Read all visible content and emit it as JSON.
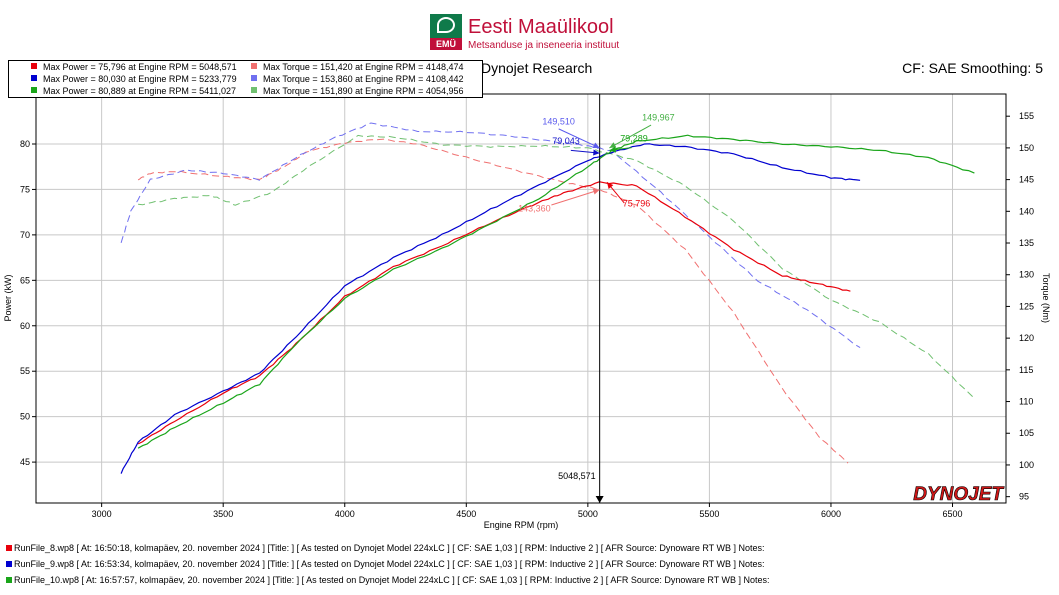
{
  "header": {
    "logo_title": "Eesti Maaülikool",
    "logo_abbr": "EMÜ",
    "logo_subtitle": "Metsanduse ja inseneeria instituut",
    "chart_title": "Dynojet Research",
    "cf_text": "CF: SAE Smoothing: 5"
  },
  "legend": {
    "power": [
      {
        "text": "Max Power = 75,796 at Engine RPM = 5048,571",
        "color": "#e8000b"
      },
      {
        "text": "Max Power = 80,030 at Engine RPM = 5233,779",
        "color": "#0000d0"
      },
      {
        "text": "Max Power = 80,889 at Engine RPM = 5411,027",
        "color": "#1aa51a"
      }
    ],
    "torque": [
      {
        "text": "Max Torque = 151,420 at Engine RPM = 4148,474",
        "color": "#f07070"
      },
      {
        "text": "Max Torque = 153,860 at Engine RPM = 4108,442",
        "color": "#7070f0"
      },
      {
        "text": "Max Torque = 151,890 at Engine RPM = 4054,956",
        "color": "#70c070"
      }
    ]
  },
  "cursor_label": "5048,571",
  "watermark": "DYNOJET",
  "runs": [
    {
      "text": "RunFile_8.wp8 [ At: 16:50:18, kolmapäev, 20. november 2024 ] [Title: ] [ As tested on Dynojet Model 224xLC ] [ CF: SAE 1,03 ] [ RPM: Inductive 2 ] [ AFR Source: Dynoware RT WB ] Notes:",
      "color": "#e8000b"
    },
    {
      "text": "RunFile_9.wp8 [ At: 16:53:34, kolmapäev, 20. november 2024 ] [Title: ] [ As tested on Dynojet Model 224xLC ] [ CF: SAE 1,03 ] [ RPM: Inductive 2 ] [ AFR Source: Dynoware RT WB ] Notes:",
      "color": "#0000d0"
    },
    {
      "text": "RunFile_10.wp8 [ At: 16:57:57, kolmapäev, 20. november 2024 ] [Title: ] [ As tested on Dynojet Model 224xLC ] [ CF: SAE 1,03 ] [ RPM: Inductive 2 ] [ AFR Source: Dynoware RT WB ] Notes:",
      "color": "#1aa51a"
    }
  ],
  "chart_data": {
    "type": "line",
    "xlabel": "Engine RPM (rpm)",
    "ylabel": "Power (kW)",
    "y2label": "Torque (Nm)",
    "xlim": [
      2730,
      6720
    ],
    "ylim": [
      40.5,
      85.5
    ],
    "y2lim": [
      94.0,
      158.5
    ],
    "xticks": [
      3000,
      3500,
      4000,
      4500,
      5000,
      5500,
      6000,
      6500
    ],
    "yticks": [
      45,
      50,
      55,
      60,
      65,
      70,
      75,
      80
    ],
    "y2ticks": [
      95,
      100,
      105,
      110,
      115,
      120,
      125,
      130,
      135,
      140,
      145,
      150,
      155
    ],
    "grid": true,
    "cursor_rpm": 5048.571,
    "power_series": [
      {
        "name": "RunFile_8 Power",
        "color": "#e8000b",
        "x": [
          3150,
          3300,
          3500,
          3650,
          3800,
          4000,
          4200,
          4400,
          4600,
          4800,
          4900,
          5048,
          5200,
          5400,
          5600,
          5800,
          5950,
          6080
        ],
        "y": [
          47.0,
          49.5,
          52.6,
          54.5,
          58.0,
          63.2,
          66.5,
          68.8,
          71.3,
          73.6,
          74.6,
          75.8,
          75.4,
          72.0,
          68.4,
          65.5,
          64.6,
          63.8
        ]
      },
      {
        "name": "RunFile_9 Power",
        "color": "#0000d0",
        "x": [
          3080,
          3150,
          3300,
          3500,
          3650,
          3800,
          4000,
          4200,
          4400,
          4600,
          4800,
          5000,
          5100,
          5233,
          5400,
          5600,
          5800,
          6000,
          6120
        ],
        "y": [
          43.8,
          47.2,
          50.2,
          52.8,
          54.8,
          58.8,
          64.4,
          67.5,
          70.0,
          72.8,
          75.5,
          78.2,
          79.1,
          80.0,
          79.7,
          78.9,
          77.4,
          76.3,
          76.0
        ]
      },
      {
        "name": "RunFile_10 Power",
        "color": "#1aa51a",
        "x": [
          3150,
          3300,
          3500,
          3650,
          3800,
          4000,
          4200,
          4400,
          4600,
          4800,
          5000,
          5100,
          5200,
          5411,
          5600,
          5800,
          6000,
          6200,
          6400,
          6590
        ],
        "y": [
          46.5,
          48.8,
          51.5,
          53.6,
          58.0,
          63.0,
          66.2,
          68.5,
          71.2,
          74.0,
          77.5,
          79.3,
          80.3,
          80.9,
          80.5,
          80.0,
          79.7,
          79.3,
          78.5,
          76.8
        ]
      }
    ],
    "torque_series": [
      {
        "name": "RunFile_8 Torque",
        "color": "#f07070",
        "x": [
          3150,
          3200,
          3300,
          3500,
          3650,
          3750,
          3850,
          4000,
          4148,
          4300,
          4500,
          4700,
          4900,
          5050,
          5200,
          5400,
          5600,
          5800,
          5950,
          6070
        ],
        "y": [
          145.0,
          146.0,
          146.3,
          145.5,
          145.0,
          147.0,
          149.5,
          150.8,
          151.4,
          150.6,
          148.5,
          146.5,
          144.6,
          143.4,
          141.0,
          134.0,
          124.0,
          112.0,
          104.5,
          100.3
        ]
      },
      {
        "name": "RunFile_9 Torque",
        "color": "#7070f0",
        "x": [
          3080,
          3120,
          3200,
          3350,
          3500,
          3650,
          3800,
          3950,
          4108,
          4300,
          4500,
          4700,
          4900,
          5000,
          5100,
          5300,
          5500,
          5700,
          5900,
          6120
        ],
        "y": [
          135.0,
          140.0,
          145.0,
          146.5,
          146.0,
          145.0,
          148.5,
          151.5,
          153.9,
          152.6,
          152.5,
          151.8,
          150.8,
          150.3,
          149.5,
          143.0,
          136.0,
          129.0,
          124.5,
          118.5
        ]
      },
      {
        "name": "RunFile_10 Torque",
        "color": "#70c070",
        "x": [
          3150,
          3300,
          3450,
          3550,
          3700,
          3850,
          4055,
          4200,
          4400,
          4600,
          4800,
          5000,
          5200,
          5400,
          5600,
          5800,
          6000,
          6200,
          6400,
          6590
        ],
        "y": [
          141.0,
          142.0,
          142.5,
          141.0,
          143.0,
          147.0,
          151.9,
          151.7,
          150.5,
          150.2,
          150.3,
          150.0,
          148.0,
          144.0,
          138.5,
          131.0,
          126.0,
          122.5,
          117.5,
          110.5
        ]
      }
    ],
    "annotations": [
      {
        "text": "149,510",
        "color": "#5a5aee",
        "x": 4880,
        "y": 153.7,
        "axis": "torque"
      },
      {
        "text": "79,043",
        "color": "#1010c8",
        "x": 4910,
        "y": 80.0,
        "axis": "power"
      },
      {
        "text": "149,967",
        "color": "#44b044",
        "x": 5290,
        "y": 154.3,
        "axis": "torque"
      },
      {
        "text": "79,289",
        "color": "#1aa51a",
        "x": 5190,
        "y": 80.3,
        "axis": "power"
      },
      {
        "text": "75,796",
        "color": "#e8000b",
        "x": 5200,
        "y": 73.1,
        "axis": "power"
      },
      {
        "text": "143,360",
        "color": "#f07070",
        "x": 4780,
        "y": 140.0,
        "axis": "torque"
      }
    ]
  }
}
